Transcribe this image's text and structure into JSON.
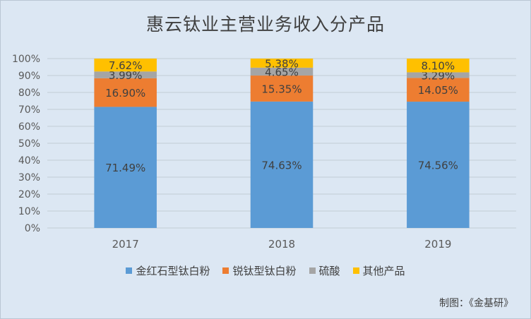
{
  "chart_data": {
    "type": "bar",
    "stacked": true,
    "title": "惠云钛业主营业务收入分产品",
    "categories": [
      "2017",
      "2018",
      "2019"
    ],
    "series": [
      {
        "name": "金红石型钛白粉",
        "color": "#5b9bd5",
        "values": [
          71.49,
          74.63,
          74.56
        ],
        "labels": [
          "71.49%",
          "74.63%",
          "74.56%"
        ]
      },
      {
        "name": "锐钛型钛白粉",
        "color": "#ed7d31",
        "values": [
          16.9,
          15.35,
          14.05
        ],
        "labels": [
          "16.90%",
          "15.35%",
          "14.05%"
        ]
      },
      {
        "name": "硫酸",
        "color": "#a5a5a5",
        "values": [
          3.99,
          4.65,
          3.29
        ],
        "labels": [
          "3.99%",
          "4.65%",
          "3.29%"
        ]
      },
      {
        "name": "其他产品",
        "color": "#ffc000",
        "values": [
          7.62,
          5.38,
          8.1
        ],
        "labels": [
          "7.62%",
          "5.38%",
          "8.10%"
        ]
      }
    ],
    "ylim": [
      0,
      100
    ],
    "yticks": [
      "0%",
      "10%",
      "20%",
      "30%",
      "40%",
      "50%",
      "60%",
      "70%",
      "80%",
      "90%",
      "100%"
    ],
    "grid": true,
    "legend": "bottom"
  },
  "source_note": "制图：《金基研》"
}
